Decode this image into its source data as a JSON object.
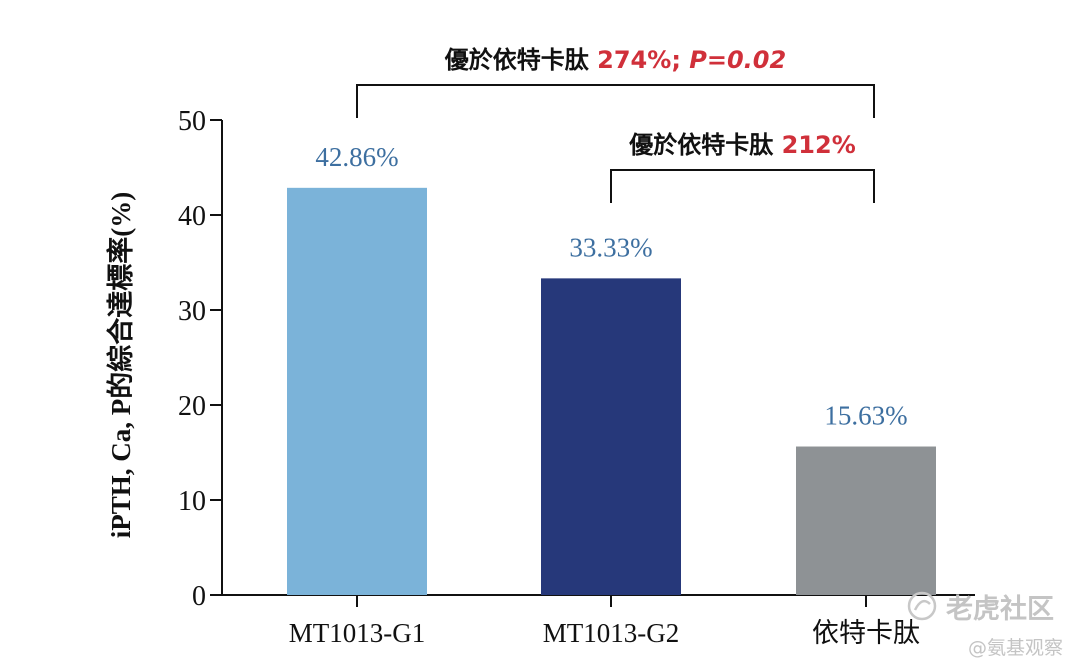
{
  "chart_data": {
    "type": "bar",
    "categories": [
      "MT1013-G1",
      "MT1013-G2",
      "依特卡肽"
    ],
    "values": [
      42.86,
      33.33,
      15.63
    ],
    "data_labels": [
      "42.86%",
      "33.33%",
      "15.63%"
    ],
    "colors": [
      "#7bb3d9",
      "#26387a",
      "#8e9295"
    ],
    "ylabel": "iPTH, Ca, P的綜合達標率(%)",
    "ylim": [
      0,
      50
    ],
    "yticks": [
      0,
      10,
      20,
      30,
      40,
      50
    ],
    "grid": false,
    "comparisons": [
      {
        "from": 0,
        "to": 2,
        "text": "優於依特卡肽",
        "value": "274%",
        "sep": "; ",
        "pvalue": "P=0.02"
      },
      {
        "from": 1,
        "to": 2,
        "text": "優於依特卡肽",
        "value": "212%"
      }
    ]
  },
  "watermark": {
    "brand": "老虎社区",
    "handle": "@氨基观察"
  }
}
